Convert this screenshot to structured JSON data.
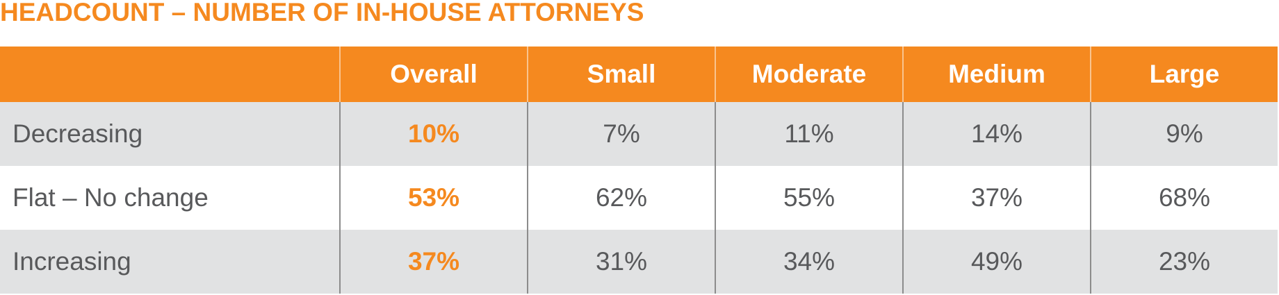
{
  "title": "HEADCOUNT – NUMBER OF IN-HOUSE ATTORNEYS",
  "table": {
    "header": [
      "Overall",
      "Small",
      "Moderate",
      "Medium",
      "Large"
    ],
    "rows": [
      {
        "label": "Decreasing",
        "values": [
          "10%",
          "7%",
          "11%",
          "14%",
          "9%"
        ]
      },
      {
        "label": "Flat – No change",
        "values": [
          "53%",
          "62%",
          "55%",
          "37%",
          "68%"
        ]
      },
      {
        "label": "Increasing",
        "values": [
          "37%",
          "31%",
          "34%",
          "49%",
          "23%"
        ]
      }
    ]
  }
}
